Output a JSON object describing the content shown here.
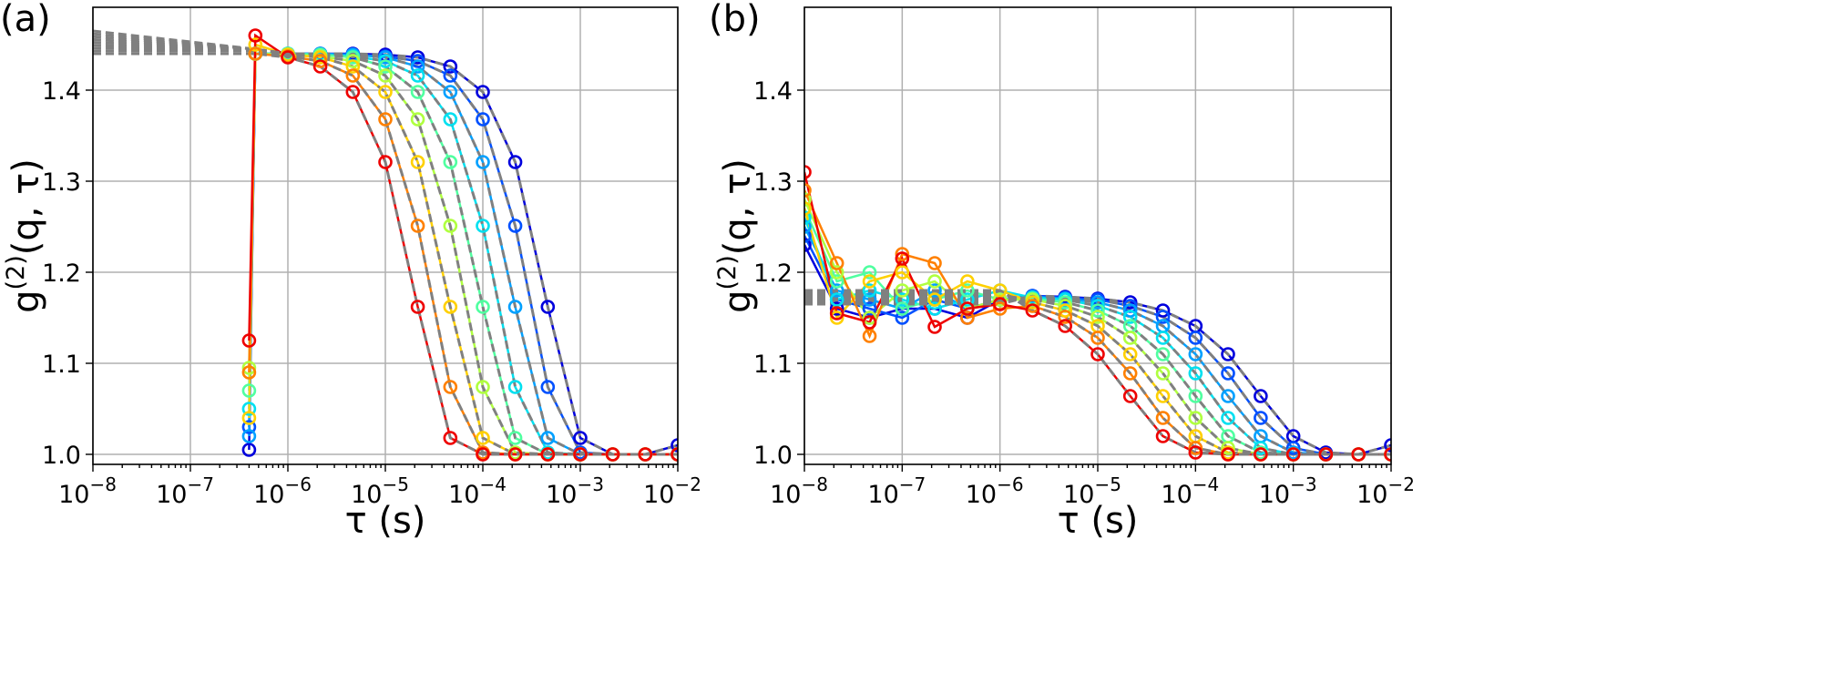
{
  "chart_data": [
    {
      "type": "scatter",
      "panel_label": "(a)",
      "xlabel": "τ (s)",
      "ylabel": "g(2)(q, τ)",
      "xscale": "log",
      "xlim": [
        1e-08,
        0.01
      ],
      "ylim": [
        0.989,
        1.491
      ],
      "grid": true,
      "xticks": [
        {
          "base": "10",
          "exp": "−8"
        },
        {
          "base": "10",
          "exp": "−7"
        },
        {
          "base": "10",
          "exp": "−6"
        },
        {
          "base": "10",
          "exp": "−5"
        },
        {
          "base": "10",
          "exp": "−4"
        },
        {
          "base": "10",
          "exp": "−3"
        },
        {
          "base": "10",
          "exp": "−2"
        }
      ],
      "yticks": [
        "1.0",
        "1.1",
        "1.2",
        "1.3",
        "1.4"
      ],
      "ytick_values": [
        1.0,
        1.1,
        1.2,
        1.3,
        1.4
      ],
      "marker": "open-circle",
      "fit_style": "gray-dashed",
      "fit_color": "#808080",
      "x": [
        4e-07,
        4.64e-07,
        1e-06,
        2.15e-06,
        4.64e-06,
        1e-05,
        2.15e-05,
        4.64e-05,
        0.0001,
        0.000215,
        0.000464,
        0.001,
        0.00215,
        0.00464,
        0.01
      ],
      "series": [
        {
          "color": "#0000dd",
          "values": [
            1.005,
            1.44,
            1.44,
            1.44,
            1.44,
            1.439,
            1.436,
            1.426,
            1.398,
            1.321,
            1.162,
            1.018,
            1.0,
            1.0,
            1.01
          ]
        },
        {
          "color": "#0050ff",
          "values": [
            1.03,
            1.44,
            1.44,
            1.44,
            1.439,
            1.437,
            1.432,
            1.416,
            1.368,
            1.251,
            1.074,
            1.002,
            1.0,
            1.0,
            1.0
          ]
        },
        {
          "color": "#00a0ff",
          "values": [
            1.02,
            1.44,
            1.44,
            1.44,
            1.439,
            1.436,
            1.426,
            1.398,
            1.321,
            1.162,
            1.018,
            1.0,
            1.0,
            1.0,
            1.0
          ]
        },
        {
          "color": "#00e0f0",
          "values": [
            1.05,
            1.44,
            1.44,
            1.439,
            1.437,
            1.432,
            1.416,
            1.368,
            1.251,
            1.074,
            1.002,
            1.0,
            1.0,
            1.0,
            1.0
          ]
        },
        {
          "color": "#50ffa0",
          "values": [
            1.07,
            1.44,
            1.44,
            1.439,
            1.436,
            1.426,
            1.398,
            1.321,
            1.162,
            1.018,
            1.0,
            1.0,
            1.0,
            1.0,
            1.0
          ]
        },
        {
          "color": "#b0ff40",
          "values": [
            1.095,
            1.44,
            1.439,
            1.437,
            1.432,
            1.416,
            1.368,
            1.251,
            1.074,
            1.002,
            1.0,
            1.0,
            1.0,
            1.0,
            1.0
          ]
        },
        {
          "color": "#ffd000",
          "values": [
            1.04,
            1.45,
            1.439,
            1.436,
            1.426,
            1.398,
            1.321,
            1.162,
            1.018,
            1.0,
            1.0,
            1.0,
            1.0,
            1.0,
            1.0
          ]
        },
        {
          "color": "#ff8000",
          "values": [
            1.09,
            1.44,
            1.437,
            1.432,
            1.416,
            1.368,
            1.251,
            1.074,
            1.002,
            1.0,
            1.0,
            1.0,
            1.0,
            1.0,
            1.0
          ]
        },
        {
          "color": "#ee0000",
          "values": [
            1.125,
            1.46,
            1.436,
            1.426,
            1.398,
            1.321,
            1.162,
            1.018,
            1.0,
            1.0,
            1.0,
            1.0,
            1.0,
            1.0,
            1.0
          ]
        }
      ]
    },
    {
      "type": "scatter",
      "panel_label": "(b)",
      "xlabel": "τ (s)",
      "ylabel": "g(2)(q, τ)",
      "xscale": "log",
      "xlim": [
        1e-08,
        0.01
      ],
      "ylim": [
        0.989,
        1.491
      ],
      "grid": true,
      "xticks": [
        {
          "base": "10",
          "exp": "−8"
        },
        {
          "base": "10",
          "exp": "−7"
        },
        {
          "base": "10",
          "exp": "−6"
        },
        {
          "base": "10",
          "exp": "−5"
        },
        {
          "base": "10",
          "exp": "−4"
        },
        {
          "base": "10",
          "exp": "−3"
        },
        {
          "base": "10",
          "exp": "−2"
        }
      ],
      "yticks": [
        "1.0",
        "1.1",
        "1.2",
        "1.3",
        "1.4"
      ],
      "ytick_values": [
        1.0,
        1.1,
        1.2,
        1.3,
        1.4
      ],
      "marker": "open-circle",
      "fit_style": "gray-dashed",
      "fit_color": "#808080",
      "x": [
        1e-08,
        2.15e-08,
        4.64e-08,
        1e-07,
        2.15e-07,
        4.64e-07,
        1e-06,
        2.15e-06,
        4.64e-06,
        1e-05,
        2.15e-05,
        4.64e-05,
        0.0001,
        0.000215,
        0.000464,
        0.001,
        0.00215,
        0.00464,
        0.01
      ],
      "series": [
        {
          "color": "#0000dd",
          "values": [
            1.23,
            1.16,
            1.15,
            1.16,
            1.16,
            1.15,
            1.17,
            1.174,
            1.173,
            1.171,
            1.167,
            1.158,
            1.141,
            1.11,
            1.064,
            1.02,
            1.002,
            1.0,
            1.01
          ]
        },
        {
          "color": "#0050ff",
          "values": [
            1.24,
            1.17,
            1.16,
            1.15,
            1.17,
            1.16,
            1.17,
            1.174,
            1.172,
            1.17,
            1.163,
            1.151,
            1.128,
            1.089,
            1.04,
            1.007,
            1.0,
            1.0,
            1.0
          ]
        },
        {
          "color": "#00a0ff",
          "values": [
            1.25,
            1.18,
            1.17,
            1.16,
            1.18,
            1.16,
            1.17,
            1.173,
            1.171,
            1.167,
            1.158,
            1.141,
            1.11,
            1.064,
            1.02,
            1.002,
            1.0,
            1.0,
            1.0
          ]
        },
        {
          "color": "#00e0f0",
          "values": [
            1.26,
            1.17,
            1.18,
            1.17,
            1.16,
            1.17,
            1.18,
            1.172,
            1.17,
            1.163,
            1.151,
            1.128,
            1.089,
            1.04,
            1.007,
            1.0,
            1.0,
            1.0,
            1.0
          ]
        },
        {
          "color": "#50ffa0",
          "values": [
            1.27,
            1.19,
            1.2,
            1.16,
            1.17,
            1.18,
            1.17,
            1.171,
            1.167,
            1.158,
            1.141,
            1.11,
            1.064,
            1.02,
            1.002,
            1.0,
            1.0,
            1.0,
            1.0
          ]
        },
        {
          "color": "#b0ff40",
          "values": [
            1.28,
            1.2,
            1.15,
            1.18,
            1.19,
            1.16,
            1.17,
            1.17,
            1.163,
            1.151,
            1.128,
            1.089,
            1.04,
            1.007,
            1.0,
            1.0,
            1.0,
            1.0,
            1.0
          ]
        },
        {
          "color": "#ffd000",
          "values": [
            1.27,
            1.15,
            1.19,
            1.2,
            1.17,
            1.19,
            1.18,
            1.167,
            1.158,
            1.141,
            1.11,
            1.064,
            1.02,
            1.002,
            1.0,
            1.0,
            1.0,
            1.0,
            1.0
          ]
        },
        {
          "color": "#ff8000",
          "values": [
            1.29,
            1.21,
            1.13,
            1.22,
            1.21,
            1.15,
            1.16,
            1.163,
            1.151,
            1.128,
            1.089,
            1.04,
            1.007,
            1.0,
            1.0,
            1.0,
            1.0,
            1.0,
            1.0
          ]
        },
        {
          "color": "#ee0000",
          "values": [
            1.31,
            1.155,
            1.145,
            1.215,
            1.14,
            1.16,
            1.165,
            1.158,
            1.141,
            1.11,
            1.064,
            1.02,
            1.002,
            1.0,
            1.0,
            1.0,
            1.0,
            1.0,
            1.0
          ]
        }
      ]
    }
  ]
}
